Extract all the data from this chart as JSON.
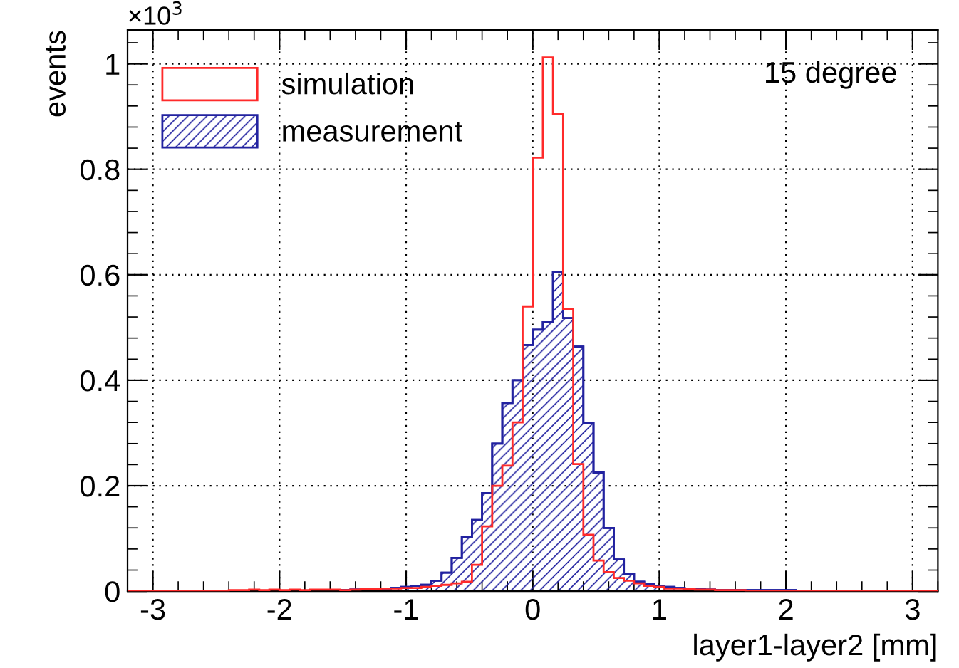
{
  "chart_data": {
    "type": "histogram",
    "xlabel": "layer1-layer2 [mm]",
    "ylabel": "events",
    "bins": [
      -3.2,
      -3.12,
      -3.04,
      -2.96,
      -2.88,
      -2.8,
      -2.72,
      -2.64,
      -2.56,
      -2.48,
      -2.4,
      -2.32,
      -2.24,
      -2.16,
      -2.08,
      -2.0,
      -1.92,
      -1.84,
      -1.76,
      -1.68,
      -1.6,
      -1.52,
      -1.44,
      -1.36,
      -1.28,
      -1.2,
      -1.12,
      -1.04,
      -0.96,
      -0.88,
      -0.8,
      -0.72,
      -0.64,
      -0.56,
      -0.48,
      -0.4,
      -0.32,
      -0.24,
      -0.16,
      -0.08,
      0.0,
      0.08,
      0.16,
      0.24,
      0.32,
      0.4,
      0.48,
      0.56,
      0.64,
      0.72,
      0.8,
      0.88,
      0.96,
      1.04,
      1.12,
      1.2,
      1.28,
      1.36,
      1.44,
      1.52,
      1.6,
      1.68,
      1.76,
      1.84,
      1.92,
      2.0,
      2.08,
      2.16,
      2.24,
      2.32,
      2.4,
      2.48,
      2.56,
      2.64,
      2.72,
      2.8,
      2.88,
      2.96,
      3.04,
      3.12,
      3.2
    ],
    "series": [
      {
        "name": "simulation",
        "color": "#ff2a2a",
        "values": [
          0,
          0,
          0,
          0,
          0,
          0,
          0,
          0,
          0,
          0,
          0.002,
          0.002,
          0.003,
          0.002,
          0.003,
          0.002,
          0.003,
          0.002,
          0.003,
          0.003,
          0.003,
          0.002,
          0.003,
          0.004,
          0.004,
          0.005,
          0.005,
          0.006,
          0.006,
          0.008,
          0.01,
          0.012,
          0.015,
          0.018,
          0.05,
          0.123,
          0.2,
          0.238,
          0.32,
          0.54,
          0.822,
          1.012,
          0.905,
          0.535,
          0.241,
          0.107,
          0.058,
          0.036,
          0.025,
          0.02,
          0.015,
          0.01,
          0.008,
          0.005,
          0.005,
          0.004,
          0.003,
          0.003,
          0.002,
          0.002,
          0.002,
          0,
          0,
          0,
          0,
          0,
          0,
          0,
          0,
          0,
          0,
          0,
          0,
          0,
          0,
          0,
          0,
          0,
          0,
          0
        ]
      },
      {
        "name": "measurement",
        "color": "#2222a0",
        "values": [
          0,
          0,
          0,
          0,
          0,
          0,
          0,
          0,
          0,
          0,
          0,
          0,
          0,
          0,
          0,
          0,
          0,
          0,
          0,
          0,
          0.002,
          0.002,
          0.003,
          0.003,
          0.004,
          0.005,
          0.006,
          0.008,
          0.01,
          0.012,
          0.02,
          0.035,
          0.063,
          0.103,
          0.135,
          0.186,
          0.28,
          0.357,
          0.4,
          0.467,
          0.496,
          0.51,
          0.605,
          0.518,
          0.464,
          0.319,
          0.225,
          0.12,
          0.06,
          0.033,
          0.018,
          0.014,
          0.01,
          0.008,
          0.006,
          0.005,
          0.004,
          0.003,
          0.002,
          0.002,
          0.002,
          0.002,
          0.002,
          0.002,
          0.002,
          0.002,
          0,
          0,
          0,
          0,
          0,
          0,
          0,
          0,
          0,
          0,
          0,
          0,
          0,
          0
        ]
      }
    ],
    "xlim": [
      -3.2,
      3.2
    ],
    "xticks": [
      -3,
      -2,
      -1,
      0,
      1,
      2,
      3
    ],
    "ylim": [
      0,
      1.064
    ],
    "yticks": [
      0,
      0.2,
      0.4,
      0.6,
      0.8,
      1
    ],
    "grid": true,
    "legend": "top left",
    "annotations": [
      "×10$^{3}$",
      "15 degree"
    ]
  }
}
